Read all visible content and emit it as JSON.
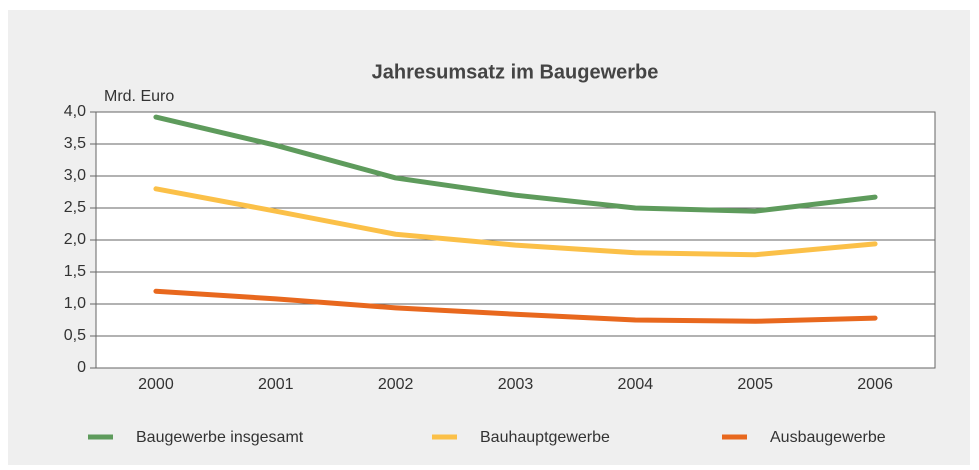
{
  "chart_data": {
    "type": "line",
    "title": "Jahresumsatz im Baugewerbe",
    "y_label": "Mrd. Euro",
    "categories": [
      "2000",
      "2001",
      "2002",
      "2003",
      "2004",
      "2005",
      "2006"
    ],
    "series": [
      {
        "name": "Baugewerbe insgesamt",
        "color": "#5e9b5c",
        "values": [
          3.92,
          3.48,
          2.97,
          2.7,
          2.5,
          2.45,
          2.67
        ]
      },
      {
        "name": "Bauhauptgewerbe",
        "color": "#fbc048",
        "values": [
          2.8,
          2.45,
          2.09,
          1.92,
          1.8,
          1.77,
          1.94
        ]
      },
      {
        "name": "Ausbaugewerbe",
        "color": "#e8681e",
        "values": [
          1.2,
          1.08,
          0.94,
          0.84,
          0.75,
          0.73,
          0.78
        ]
      }
    ],
    "ylim": [
      0,
      4
    ],
    "yticks": [
      0,
      {
        "value": 0.5,
        "label": "0,5"
      },
      {
        "value": 1,
        "label": "1,0"
      },
      {
        "value": 1.5,
        "label": "1,5"
      },
      {
        "value": 2,
        "label": "2,0"
      },
      {
        "value": 2.5,
        "label": "2,5"
      },
      {
        "value": 3,
        "label": "3,0"
      },
      {
        "value": 3.5,
        "label": "3,5"
      },
      {
        "value": 4,
        "label": "4,0"
      }
    ],
    "grid": true,
    "legend": "bottom"
  }
}
